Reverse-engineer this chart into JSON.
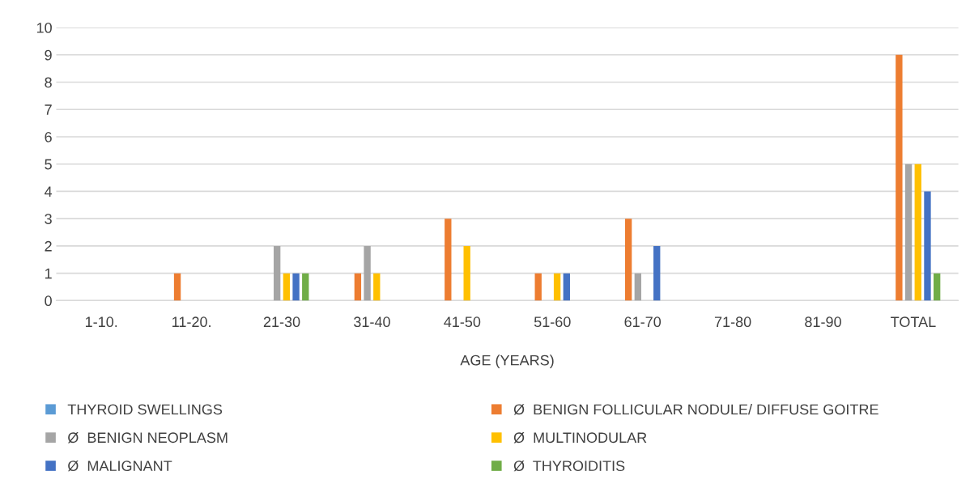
{
  "chart_data": {
    "type": "bar",
    "xlabel": "AGE (YEARS)",
    "categories": [
      "1-10.",
      "11-20.",
      "21-30",
      "31-40",
      "41-50",
      "51-60",
      "61-70",
      "71-80",
      "81-90",
      "TOTAL"
    ],
    "series": [
      {
        "name": "THYROID SWELLINGS",
        "color": "#5b9bd5",
        "values": [
          0,
          0,
          0,
          0,
          0,
          0,
          0,
          0,
          0,
          0
        ]
      },
      {
        "name": "Ø  BENIGN FOLLICULAR NODULE/ DIFFUSE GOITRE",
        "color": "#ed7d31",
        "values": [
          0,
          1,
          0,
          1,
          3,
          1,
          3,
          0,
          0,
          9
        ]
      },
      {
        "name": "Ø  BENIGN NEOPLASM",
        "color": "#a5a5a5",
        "values": [
          0,
          0,
          2,
          2,
          0,
          0,
          1,
          0,
          0,
          5
        ]
      },
      {
        "name": "Ø  MULTINODULAR",
        "color": "#ffc000",
        "values": [
          0,
          0,
          1,
          1,
          2,
          1,
          0,
          0,
          0,
          5
        ]
      },
      {
        "name": "Ø  MALIGNANT",
        "color": "#4472c4",
        "values": [
          0,
          0,
          1,
          0,
          0,
          1,
          2,
          0,
          0,
          4
        ]
      },
      {
        "name": "Ø  THYROIDITIS",
        "color": "#70ad47",
        "values": [
          0,
          0,
          1,
          0,
          0,
          0,
          0,
          0,
          0,
          1
        ]
      }
    ],
    "ylim": [
      0,
      10
    ],
    "yticks": [
      0,
      1,
      2,
      3,
      4,
      5,
      6,
      7,
      8,
      9,
      10
    ],
    "grid": "y",
    "legend": "bottom"
  }
}
